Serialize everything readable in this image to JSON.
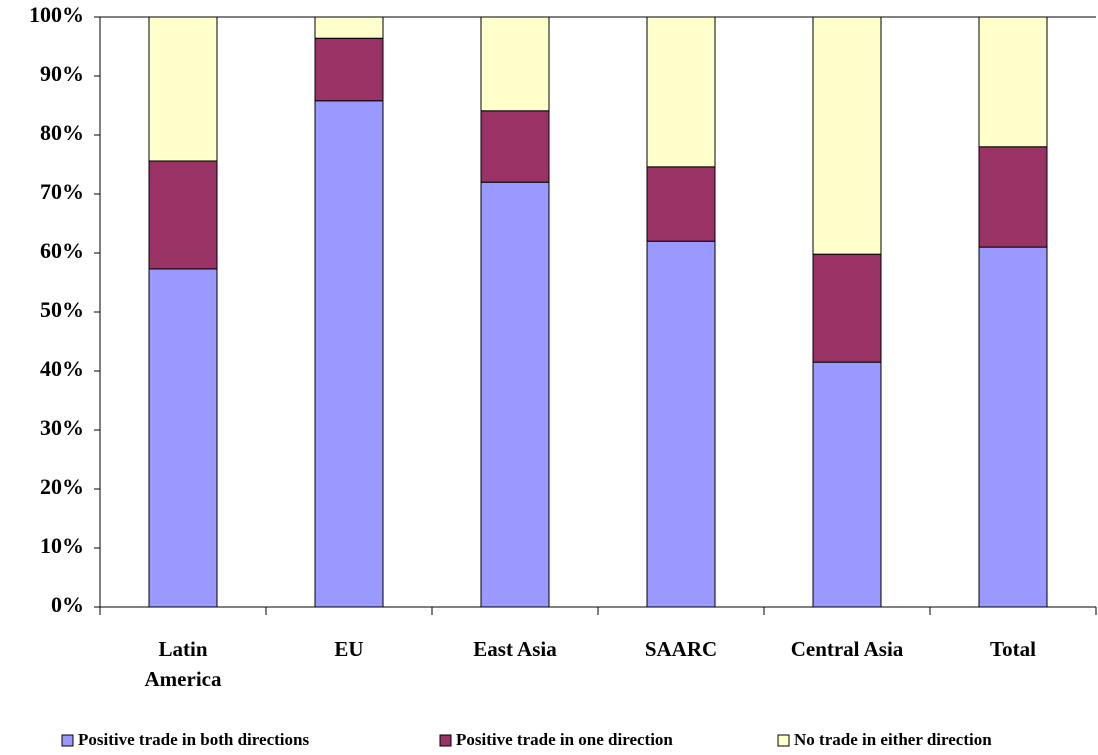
{
  "chart_data": {
    "type": "stacked_bar",
    "categories": [
      "Latin America",
      "EU",
      "East Asia",
      "SAARC",
      "Central Asia",
      "Total"
    ],
    "series": [
      {
        "name": "Positive trade in both directions",
        "color": "#9999ff",
        "values": [
          57.3,
          85.8,
          72.0,
          62.0,
          41.5,
          61.0
        ]
      },
      {
        "name": "Positive trade in one direction",
        "color": "#993366",
        "values": [
          18.3,
          10.6,
          12.1,
          12.6,
          18.3,
          17.0
        ]
      },
      {
        "name": "No trade in either direction",
        "color": "#ffffcc",
        "values": [
          24.4,
          3.6,
          15.9,
          25.4,
          40.2,
          22.0
        ]
      }
    ],
    "ylim": [
      0,
      100
    ],
    "yticks": [
      {
        "value": 0,
        "label": "0%"
      },
      {
        "value": 10,
        "label": "10%"
      },
      {
        "value": 20,
        "label": "20%"
      },
      {
        "value": 30,
        "label": "30%"
      },
      {
        "value": 40,
        "label": "40%"
      },
      {
        "value": 50,
        "label": "50%"
      },
      {
        "value": 60,
        "label": "60%"
      },
      {
        "value": 70,
        "label": "70%"
      },
      {
        "value": 80,
        "label": "80%"
      },
      {
        "value": 90,
        "label": "90%"
      },
      {
        "value": 100,
        "label": "100%"
      }
    ],
    "legend": "bottom"
  }
}
